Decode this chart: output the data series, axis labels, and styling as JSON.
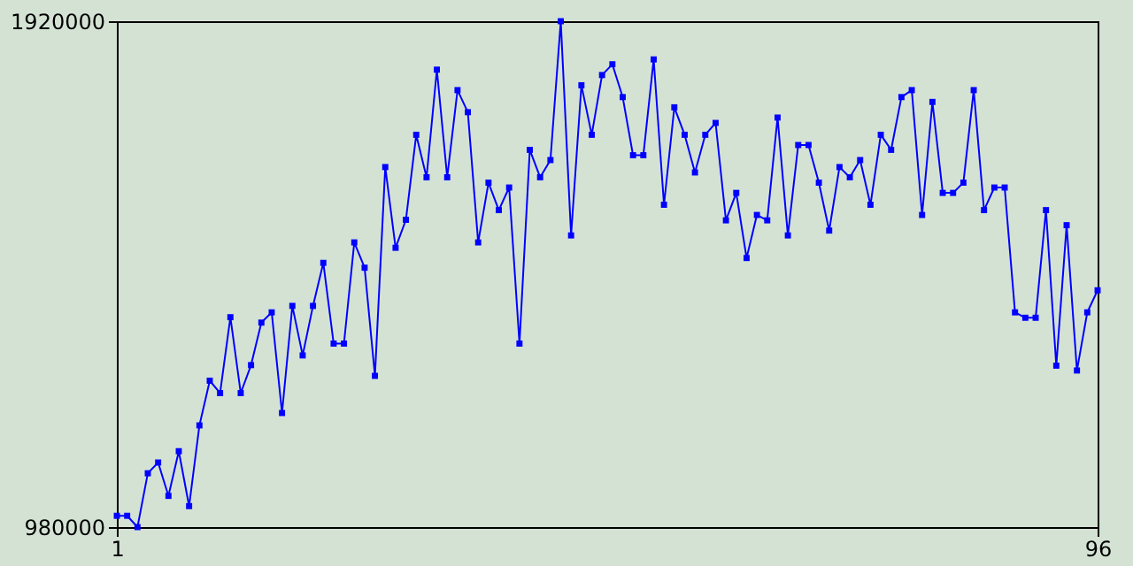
{
  "chart_data": {
    "type": "line",
    "marker": "square",
    "line_style": "solid",
    "grid": false,
    "x": [
      1,
      2,
      3,
      4,
      5,
      6,
      7,
      8,
      9,
      10,
      11,
      12,
      13,
      14,
      15,
      16,
      17,
      18,
      19,
      20,
      21,
      22,
      23,
      24,
      25,
      26,
      27,
      28,
      29,
      30,
      31,
      32,
      33,
      34,
      35,
      36,
      37,
      38,
      39,
      40,
      41,
      42,
      43,
      44,
      45,
      46,
      47,
      48,
      49,
      50,
      51,
      52,
      53,
      54,
      55,
      56,
      57,
      58,
      59,
      60,
      61,
      62,
      63,
      64,
      65,
      66,
      67,
      68,
      69,
      70,
      71,
      72,
      73,
      74,
      75,
      76,
      77,
      78,
      79,
      80,
      81,
      82,
      83,
      84,
      85,
      86,
      87,
      88,
      89,
      90,
      91,
      92,
      93,
      94,
      95,
      96
    ],
    "series": [
      {
        "color": "#0000ff",
        "values": [
          1001000,
          1001000,
          980000,
          1080000,
          1100000,
          1038000,
          1121000,
          1019000,
          1169000,
          1252000,
          1229000,
          1370000,
          1229000,
          1281000,
          1360000,
          1379000,
          1192000,
          1391000,
          1299000,
          1391000,
          1471000,
          1321000,
          1321000,
          1509000,
          1462000,
          1261000,
          1649000,
          1499000,
          1551000,
          1709000,
          1630000,
          1830000,
          1630000,
          1792000,
          1751000,
          1509000,
          1620000,
          1569000,
          1611000,
          1321000,
          1681000,
          1630000,
          1662000,
          1920000,
          1522000,
          1801000,
          1709000,
          1820000,
          1840000,
          1779000,
          1671000,
          1671000,
          1849000,
          1579000,
          1760000,
          1709000,
          1639000,
          1709000,
          1731000,
          1550000,
          1601000,
          1480000,
          1560000,
          1550000,
          1741000,
          1522000,
          1690000,
          1690000,
          1620000,
          1531000,
          1649000,
          1630000,
          1662000,
          1579000,
          1709000,
          1681000,
          1779000,
          1792000,
          1560000,
          1770000,
          1601000,
          1601000,
          1620000,
          1792000,
          1569000,
          1611000,
          1611000,
          1379000,
          1369000,
          1369000,
          1569000,
          1280000,
          1541000,
          1271000,
          1379000,
          1420000
        ]
      }
    ],
    "xlim": [
      1,
      96
    ],
    "xticks": [
      1,
      96
    ],
    "ylim": [
      980000,
      1920000
    ],
    "yticks": [
      980000,
      1920000
    ]
  }
}
